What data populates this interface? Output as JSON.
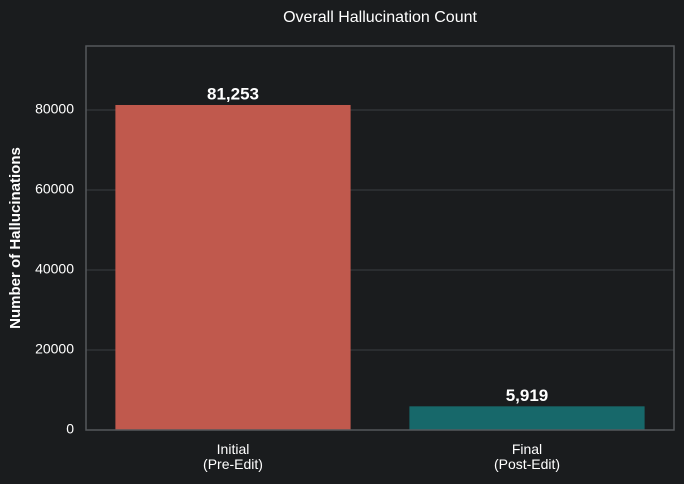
{
  "chart_data": {
    "type": "bar",
    "title": "Overall Hallucination Count",
    "y_label": "Number of Hallucinations",
    "categories": [
      "Initial\n(Pre-Edit)",
      "Final\n(Post-Edit)"
    ],
    "values": [
      81253,
      5919
    ],
    "value_labels": [
      "81,253",
      "5,919"
    ],
    "colors": [
      "#c0594d",
      "#17686a"
    ],
    "ylim": [
      0,
      96000
    ],
    "yticks": [
      0,
      20000,
      40000,
      60000,
      80000
    ],
    "grid": true
  }
}
